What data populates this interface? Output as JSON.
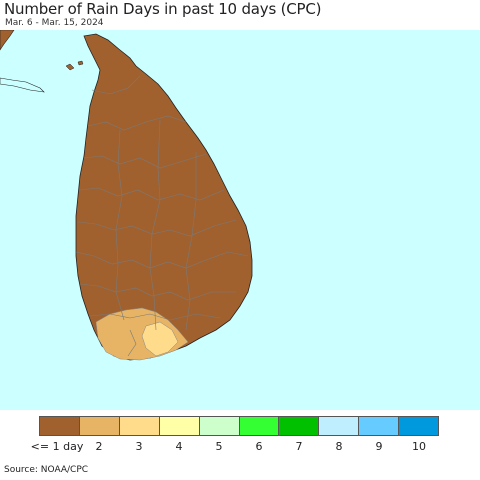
{
  "header": {
    "title": "Number of Rain Days in past 10 days (CPC)",
    "subtitle": "Mar. 6 - Mar. 15, 2024"
  },
  "map": {
    "ocean_color": "#ccffff",
    "region": "Sri Lanka"
  },
  "legend": {
    "items": [
      {
        "label": "<= 1 day",
        "color": "#a0612f"
      },
      {
        "label": "2",
        "color": "#e6b464"
      },
      {
        "label": "3",
        "color": "#ffdc8c"
      },
      {
        "label": "4",
        "color": "#ffffa8"
      },
      {
        "label": "5",
        "color": "#ccffcc"
      },
      {
        "label": "6",
        "color": "#33ff33"
      },
      {
        "label": "7",
        "color": "#00c000"
      },
      {
        "label": "8",
        "color": "#bfeeff"
      },
      {
        "label": "9",
        "color": "#66ccff"
      },
      {
        "label": "10",
        "color": "#0099dd"
      }
    ]
  },
  "footer": {
    "source": "Source: NOAA/CPC"
  }
}
